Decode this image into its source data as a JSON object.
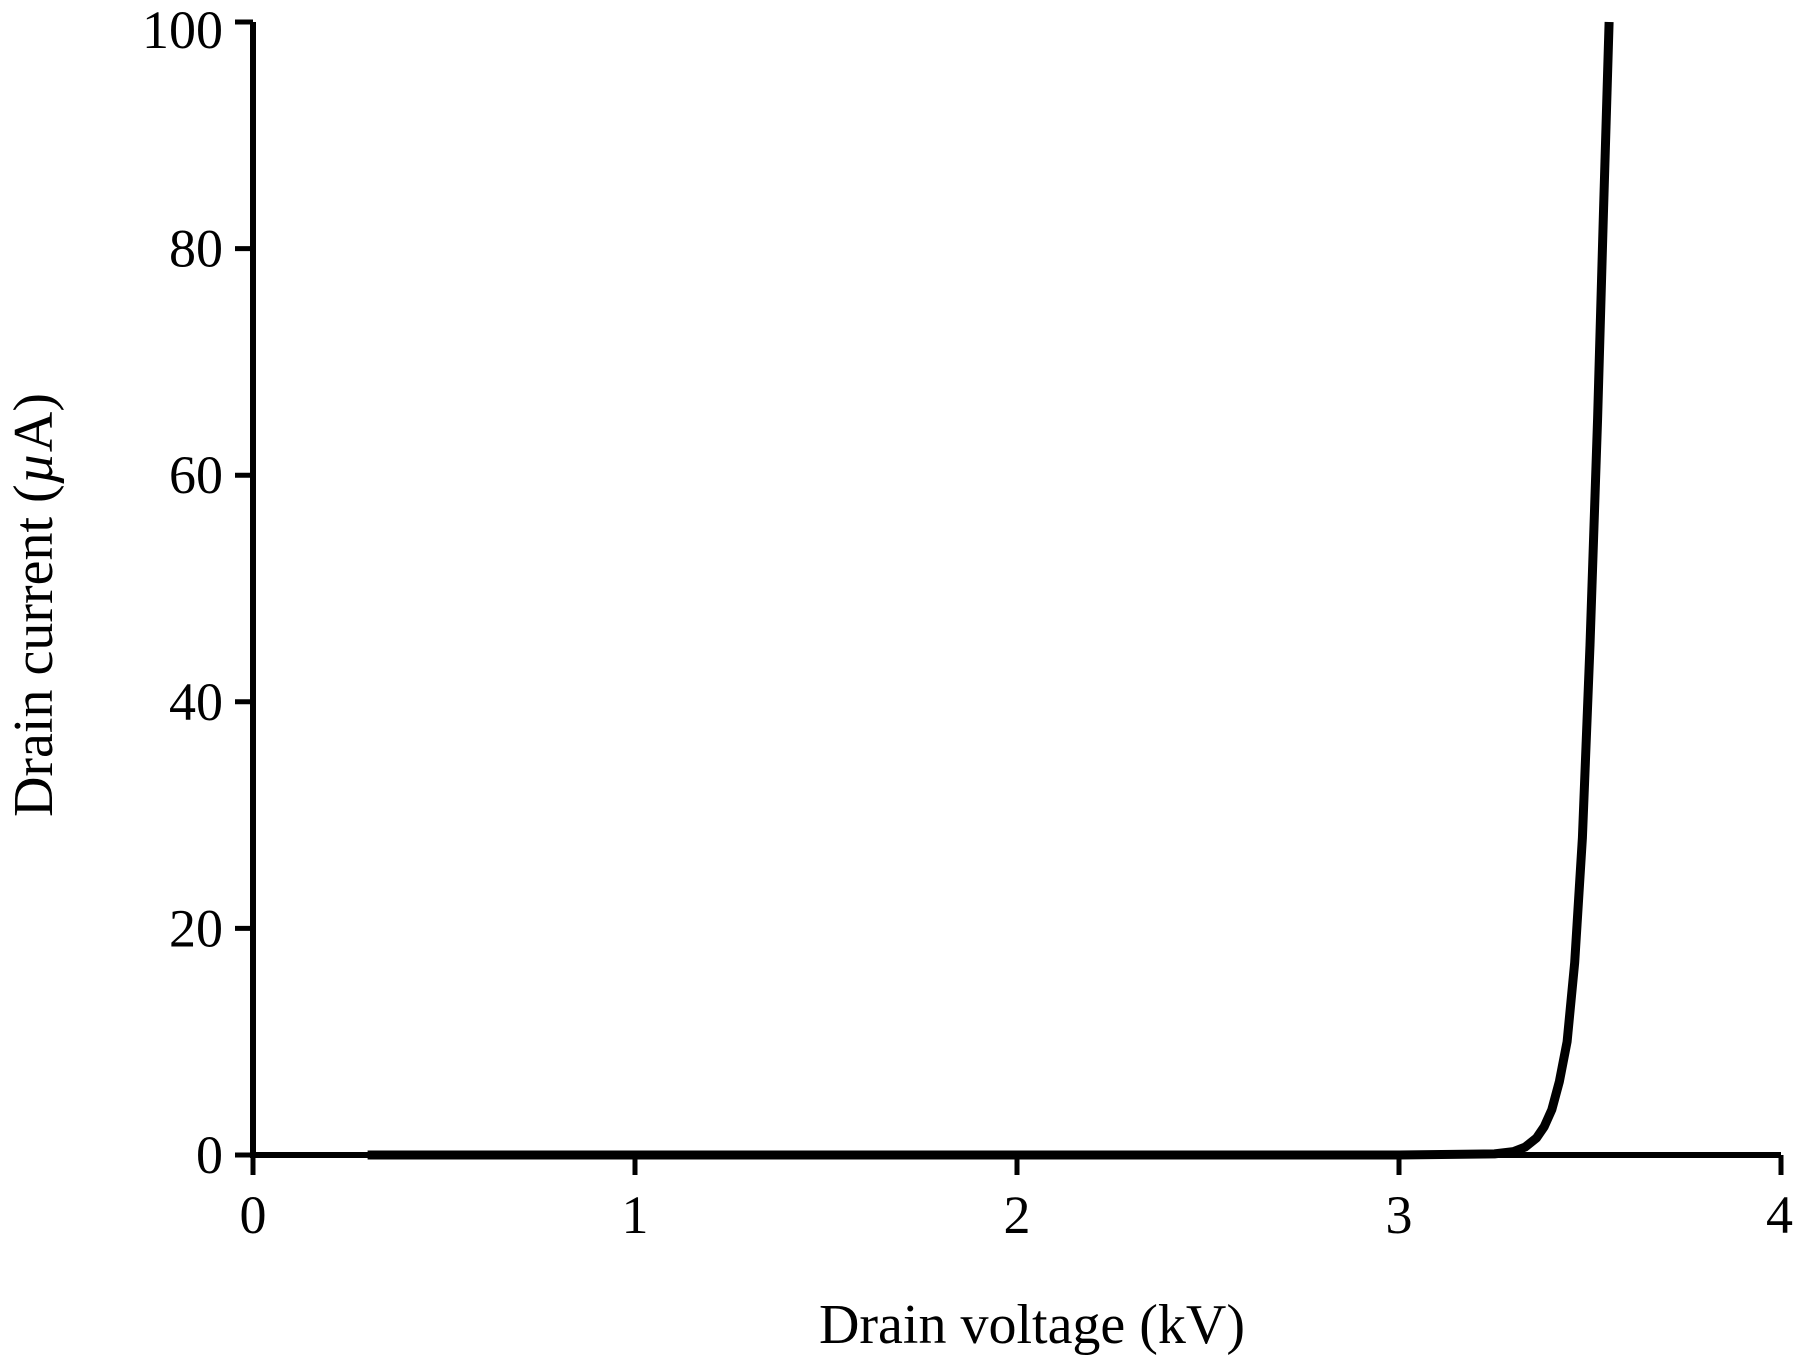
{
  "chart_data": {
    "type": "line",
    "title": "",
    "xlabel": "Drain voltage (kV)",
    "ylabel_prefix": "Drain current (",
    "ylabel_symbol": "µ",
    "ylabel_suffix": "A)",
    "xlim": [
      0,
      4
    ],
    "ylim": [
      0,
      100
    ],
    "x_ticks": [
      0,
      1,
      2,
      3,
      4
    ],
    "y_ticks": [
      0,
      20,
      40,
      60,
      80,
      100
    ],
    "x_tick_labels": [
      "0",
      "1",
      "2",
      "3",
      "4"
    ],
    "y_tick_labels": [
      "0",
      "20",
      "40",
      "60",
      "80",
      "100"
    ],
    "grid": false,
    "line_color": "#000000",
    "series": [
      {
        "x": [
          0.3,
          1.0,
          2.0,
          3.0,
          3.25,
          3.3,
          3.33,
          3.36,
          3.38,
          3.4,
          3.42,
          3.44,
          3.46,
          3.48,
          3.5,
          3.52,
          3.535,
          3.55
        ],
        "y": [
          0,
          0,
          0,
          0,
          0.1,
          0.3,
          0.7,
          1.5,
          2.5,
          4,
          6.5,
          10,
          17,
          28,
          45,
          65,
          83,
          100
        ]
      }
    ]
  }
}
